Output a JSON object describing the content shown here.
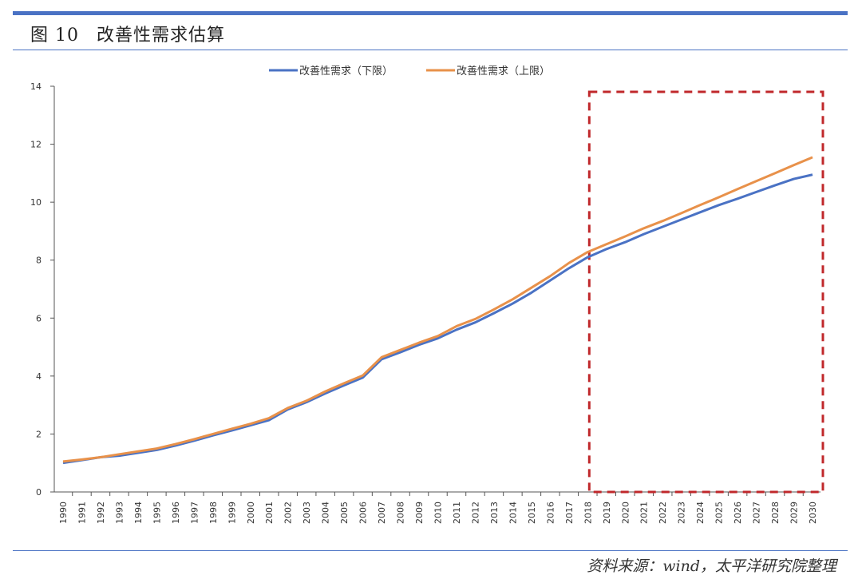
{
  "figure": {
    "label": "图",
    "number": "10",
    "title": "改善性需求估算"
  },
  "source": "资料来源：wind，太平洋研究院整理",
  "colors": {
    "rule": "#4a72c4",
    "lower": "#4a72c4",
    "upper": "#e8914a",
    "highlight_box": "#c0282b"
  },
  "chart_data": {
    "type": "line",
    "title": "",
    "xlabel": "",
    "ylabel": "",
    "ylim": [
      0,
      14
    ],
    "yticks": [
      0,
      2,
      4,
      6,
      8,
      10,
      12,
      14
    ],
    "legend_position": "top-center",
    "grid": false,
    "x": [
      "1990",
      "1991",
      "1992",
      "1993",
      "1994",
      "1995",
      "1996",
      "1997",
      "1998",
      "1999",
      "2000",
      "2001",
      "2002",
      "2003",
      "2004",
      "2005",
      "2006",
      "2007",
      "2008",
      "2009",
      "2010",
      "2011",
      "2012",
      "2013",
      "2014",
      "2015",
      "2016",
      "2017",
      "2018",
      "2019",
      "2020",
      "2021",
      "2022",
      "2023",
      "2024",
      "2025",
      "2026",
      "2027",
      "2028",
      "2029",
      "2030"
    ],
    "series": [
      {
        "name": "改善性需求（下限）",
        "color": "#4a72c4",
        "values": [
          1.0,
          1.1,
          1.2,
          1.25,
          1.35,
          1.45,
          1.6,
          1.77,
          1.95,
          2.12,
          2.3,
          2.48,
          2.85,
          3.1,
          3.4,
          3.68,
          3.95,
          4.58,
          4.82,
          5.08,
          5.3,
          5.6,
          5.85,
          6.17,
          6.5,
          6.88,
          7.3,
          7.72,
          8.1,
          8.38,
          8.62,
          8.9,
          9.15,
          9.4,
          9.65,
          9.9,
          10.12,
          10.35,
          10.58,
          10.8,
          10.95
        ]
      },
      {
        "name": "改善性需求（上限）",
        "color": "#e8914a",
        "values": [
          1.05,
          1.12,
          1.2,
          1.3,
          1.4,
          1.5,
          1.65,
          1.82,
          2.0,
          2.18,
          2.35,
          2.55,
          2.9,
          3.15,
          3.47,
          3.75,
          4.02,
          4.65,
          4.9,
          5.15,
          5.38,
          5.72,
          5.97,
          6.3,
          6.65,
          7.05,
          7.45,
          7.9,
          8.28,
          8.55,
          8.82,
          9.1,
          9.35,
          9.62,
          9.9,
          10.17,
          10.45,
          10.73,
          11.0,
          11.28,
          11.55
        ]
      }
    ],
    "highlight": {
      "from": "2018",
      "to": "2030"
    }
  }
}
